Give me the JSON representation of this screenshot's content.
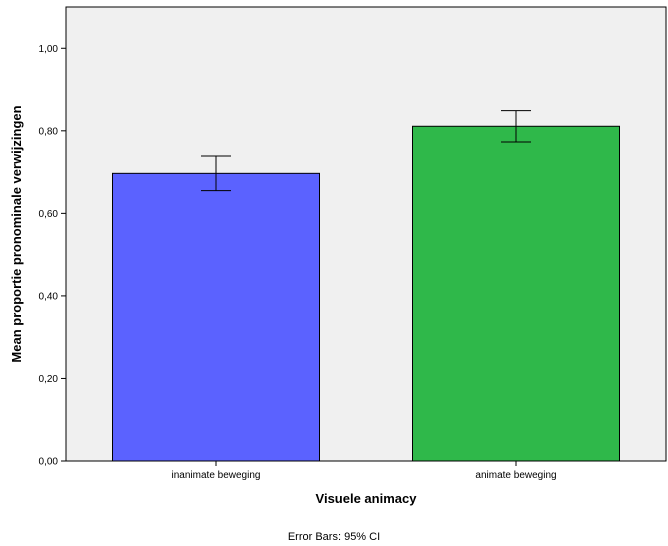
{
  "chart_data": {
    "type": "bar",
    "categories": [
      "inanimate beweging",
      "animate beweging"
    ],
    "values": [
      0.697,
      0.811
    ],
    "error_bars": {
      "lower": [
        0.655,
        0.773
      ],
      "upper": [
        0.739,
        0.849
      ]
    },
    "colors": [
      "#5b62ff",
      "#2fb84a"
    ],
    "plot_background": "#f0f0f0",
    "xlabel": "Visuele animacy",
    "ylabel": "Mean proportie pronominale verwijzingen",
    "ylim": [
      0,
      1.1
    ],
    "yticks": [
      0,
      0.2,
      0.4,
      0.6,
      0.8,
      1.0
    ],
    "ytick_labels": [
      "0,00",
      "0,20",
      "0,40",
      "0,60",
      "0,80",
      "1,00"
    ],
    "grid": false,
    "footnote": "Error Bars: 95% CI"
  }
}
